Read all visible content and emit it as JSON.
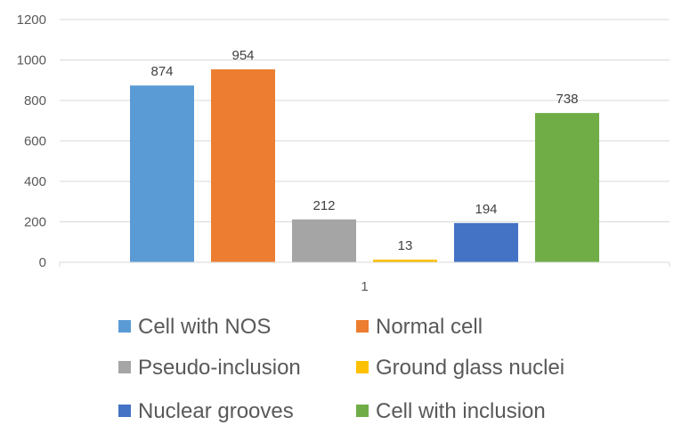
{
  "chart_data": {
    "type": "bar",
    "categories": [
      "1"
    ],
    "series": [
      {
        "name": "Cell with NOS",
        "values": [
          874
        ],
        "color": "#5B9BD5"
      },
      {
        "name": "Normal cell",
        "values": [
          954
        ],
        "color": "#ED7D31"
      },
      {
        "name": "Pseudo-inclusion",
        "values": [
          212
        ],
        "color": "#A5A5A5"
      },
      {
        "name": "Ground glass nuclei",
        "values": [
          13
        ],
        "color": "#FFC000"
      },
      {
        "name": "Nuclear grooves",
        "values": [
          194
        ],
        "color": "#4472C4"
      },
      {
        "name": "Cell with inclusion",
        "values": [
          738
        ],
        "color": "#70AD47"
      }
    ],
    "yticks": [
      "0",
      "200",
      "400",
      "600",
      "800",
      "1000",
      "1200"
    ],
    "ylim": [
      0,
      1200
    ],
    "grid": true,
    "legend": "bottom",
    "colors": {
      "grid": "#D9D9D9",
      "axis": "#D9D9D9"
    }
  }
}
